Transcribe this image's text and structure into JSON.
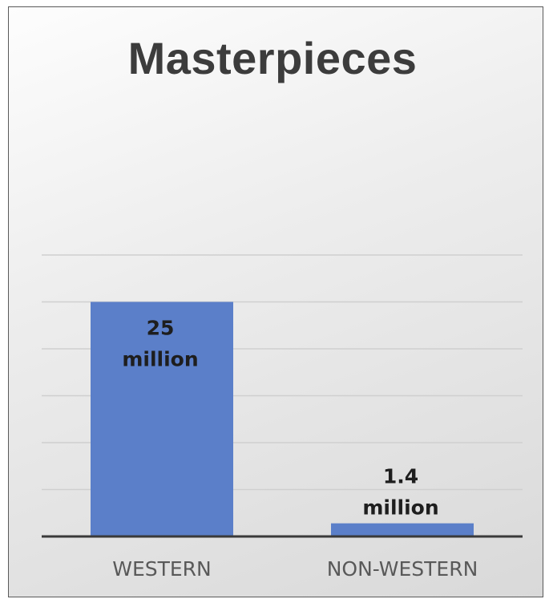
{
  "chart_data": {
    "type": "bar",
    "title": "Masterpieces",
    "categories": [
      "WESTERN",
      "NON-WESTERN"
    ],
    "values": [
      25,
      1.4
    ],
    "data_labels": [
      [
        "25",
        "million"
      ],
      [
        "1.4",
        "million"
      ]
    ],
    "unit": "million",
    "ylim": [
      0,
      30
    ],
    "grid": true,
    "legend": "none",
    "bar_color": "#5b7fc9",
    "axis_color": "#3a3a3a",
    "grid_color": "#cfcfcf"
  }
}
